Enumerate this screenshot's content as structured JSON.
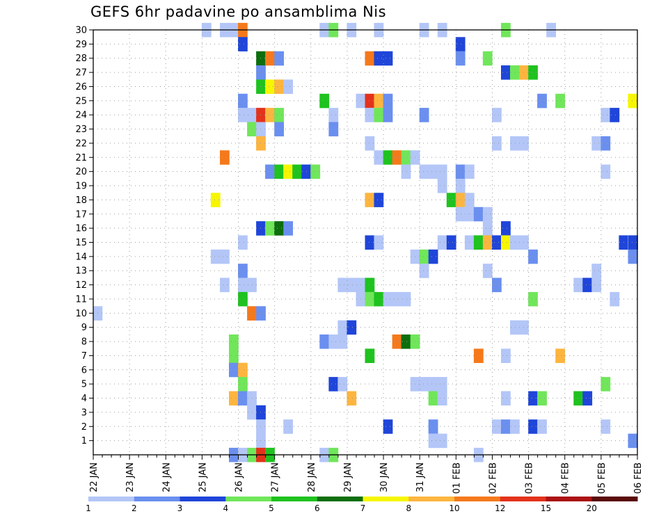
{
  "chart_data": {
    "type": "heatmap",
    "title": "GEFS 6hr padavine po ansamblima Nis",
    "x_label_ticks": [
      "22 JAN",
      "23 JAN",
      "24 JAN",
      "25 JAN",
      "26 JAN",
      "27 JAN",
      "28 JAN",
      "29 JAN",
      "30 JAN",
      "31 JAN",
      "01 FEB",
      "02 FEB",
      "03 FEB",
      "04 FEB",
      "05 FEB",
      "06 FEB"
    ],
    "y_ticks": [
      1,
      2,
      3,
      4,
      5,
      6,
      7,
      8,
      9,
      10,
      11,
      12,
      13,
      14,
      15,
      16,
      17,
      18,
      19,
      20,
      21,
      22,
      23,
      24,
      25,
      26,
      27,
      28,
      29,
      30
    ],
    "xlim": [
      0,
      60
    ],
    "ylim": [
      0,
      30
    ],
    "grid": true,
    "legend_placement": "bottom",
    "legend": {
      "labels": [
        "1",
        "2",
        "3",
        "4",
        "5",
        "6",
        "7",
        "8",
        "10",
        "12",
        "15",
        "20"
      ],
      "colors": [
        "#b3c6f7",
        "#6a8fef",
        "#1f45d9",
        "#70e65a",
        "#1fc21f",
        "#0d6e0d",
        "#f6f600",
        "#fdb53f",
        "#f5791b",
        "#e3321b",
        "#ab1212",
        "#5a0a0a"
      ]
    },
    "cells": [
      [
        12,
        30,
        1
      ],
      [
        14,
        30,
        1
      ],
      [
        15,
        30,
        1
      ],
      [
        16,
        30,
        9
      ],
      [
        25,
        30,
        1
      ],
      [
        26,
        30,
        4
      ],
      [
        28,
        30,
        1
      ],
      [
        31,
        30,
        1
      ],
      [
        36,
        30,
        1
      ],
      [
        38,
        30,
        1
      ],
      [
        45,
        30,
        4
      ],
      [
        50,
        30,
        1
      ],
      [
        16,
        29,
        3
      ],
      [
        40,
        29,
        3
      ],
      [
        18,
        28,
        6
      ],
      [
        19,
        28,
        9
      ],
      [
        20,
        28,
        2
      ],
      [
        30,
        28,
        9
      ],
      [
        31,
        28,
        3
      ],
      [
        32,
        28,
        3
      ],
      [
        40,
        28,
        2
      ],
      [
        43,
        28,
        4
      ],
      [
        18,
        27,
        2
      ],
      [
        45,
        27,
        3
      ],
      [
        46,
        27,
        4
      ],
      [
        47,
        27,
        8
      ],
      [
        48,
        27,
        5
      ],
      [
        18,
        26,
        5
      ],
      [
        19,
        26,
        7
      ],
      [
        20,
        26,
        8
      ],
      [
        21,
        26,
        1
      ],
      [
        16,
        25,
        2
      ],
      [
        25,
        25,
        5
      ],
      [
        29,
        25,
        1
      ],
      [
        30,
        25,
        10
      ],
      [
        31,
        25,
        8
      ],
      [
        32,
        25,
        2
      ],
      [
        49,
        25,
        2
      ],
      [
        51,
        25,
        4
      ],
      [
        59,
        25,
        7
      ],
      [
        16,
        24,
        1
      ],
      [
        17,
        24,
        1
      ],
      [
        18,
        24,
        10
      ],
      [
        19,
        24,
        8
      ],
      [
        20,
        24,
        4
      ],
      [
        26,
        24,
        1
      ],
      [
        30,
        24,
        1
      ],
      [
        31,
        24,
        4
      ],
      [
        32,
        24,
        2
      ],
      [
        36,
        24,
        2
      ],
      [
        44,
        24,
        1
      ],
      [
        56,
        24,
        1
      ],
      [
        57,
        24,
        3
      ],
      [
        17,
        23,
        4
      ],
      [
        18,
        23,
        1
      ],
      [
        20,
        23,
        2
      ],
      [
        26,
        23,
        2
      ],
      [
        18,
        22,
        8
      ],
      [
        30,
        22,
        1
      ],
      [
        44,
        22,
        1
      ],
      [
        46,
        22,
        1
      ],
      [
        47,
        22,
        1
      ],
      [
        55,
        22,
        1
      ],
      [
        56,
        22,
        2
      ],
      [
        14,
        21,
        9
      ],
      [
        31,
        21,
        1
      ],
      [
        32,
        21,
        5
      ],
      [
        33,
        21,
        9
      ],
      [
        34,
        21,
        4
      ],
      [
        35,
        21,
        1
      ],
      [
        19,
        20,
        2
      ],
      [
        20,
        20,
        5
      ],
      [
        21,
        20,
        7
      ],
      [
        22,
        20,
        5
      ],
      [
        23,
        20,
        3
      ],
      [
        24,
        20,
        4
      ],
      [
        34,
        20,
        1
      ],
      [
        36,
        20,
        1
      ],
      [
        37,
        20,
        1
      ],
      [
        38,
        20,
        1
      ],
      [
        40,
        20,
        2
      ],
      [
        41,
        20,
        1
      ],
      [
        56,
        20,
        1
      ],
      [
        38,
        19,
        1
      ],
      [
        40,
        19,
        1
      ],
      [
        13,
        18,
        7
      ],
      [
        30,
        18,
        8
      ],
      [
        31,
        18,
        3
      ],
      [
        39,
        18,
        5
      ],
      [
        40,
        18,
        8
      ],
      [
        41,
        18,
        1
      ],
      [
        40,
        17,
        1
      ],
      [
        41,
        17,
        1
      ],
      [
        42,
        17,
        2
      ],
      [
        43,
        17,
        1
      ],
      [
        18,
        16,
        3
      ],
      [
        19,
        16,
        4
      ],
      [
        20,
        16,
        6
      ],
      [
        21,
        16,
        2
      ],
      [
        43,
        16,
        1
      ],
      [
        45,
        16,
        3
      ],
      [
        16,
        15,
        1
      ],
      [
        30,
        15,
        3
      ],
      [
        31,
        15,
        1
      ],
      [
        38,
        15,
        1
      ],
      [
        39,
        15,
        3
      ],
      [
        41,
        15,
        1
      ],
      [
        42,
        15,
        5
      ],
      [
        43,
        15,
        8
      ],
      [
        44,
        15,
        3
      ],
      [
        45,
        15,
        7
      ],
      [
        46,
        15,
        1
      ],
      [
        47,
        15,
        1
      ],
      [
        58,
        15,
        3
      ],
      [
        59,
        15,
        1
      ],
      [
        60,
        15,
        3
      ],
      [
        13,
        14,
        1
      ],
      [
        14,
        14,
        1
      ],
      [
        35,
        14,
        1
      ],
      [
        36,
        14,
        4
      ],
      [
        37,
        14,
        3
      ],
      [
        48,
        14,
        2
      ],
      [
        59,
        14,
        2
      ],
      [
        16,
        13,
        2
      ],
      [
        36,
        13,
        1
      ],
      [
        43,
        13,
        1
      ],
      [
        55,
        13,
        1
      ],
      [
        14,
        12,
        1
      ],
      [
        16,
        12,
        1
      ],
      [
        17,
        12,
        1
      ],
      [
        27,
        12,
        1
      ],
      [
        28,
        12,
        1
      ],
      [
        29,
        12,
        1
      ],
      [
        30,
        12,
        5
      ],
      [
        53,
        12,
        1
      ],
      [
        54,
        12,
        3
      ],
      [
        55,
        12,
        1
      ],
      [
        44,
        12,
        2
      ],
      [
        16,
        11,
        5
      ],
      [
        29,
        11,
        1
      ],
      [
        30,
        11,
        4
      ],
      [
        31,
        11,
        5
      ],
      [
        32,
        11,
        1
      ],
      [
        33,
        11,
        1
      ],
      [
        34,
        11,
        1
      ],
      [
        48,
        11,
        4
      ],
      [
        57,
        11,
        1
      ],
      [
        0,
        10,
        1
      ],
      [
        17,
        10,
        9
      ],
      [
        18,
        10,
        2
      ],
      [
        27,
        9,
        1
      ],
      [
        28,
        9,
        3
      ],
      [
        46,
        9,
        1
      ],
      [
        47,
        9,
        1
      ],
      [
        15,
        8,
        4
      ],
      [
        25,
        8,
        2
      ],
      [
        26,
        8,
        1
      ],
      [
        27,
        8,
        1
      ],
      [
        33,
        8,
        9
      ],
      [
        34,
        8,
        6
      ],
      [
        35,
        8,
        4
      ],
      [
        15,
        7,
        4
      ],
      [
        30,
        7,
        5
      ],
      [
        42,
        7,
        9
      ],
      [
        45,
        7,
        1
      ],
      [
        51,
        7,
        8
      ],
      [
        15,
        6,
        2
      ],
      [
        16,
        6,
        8
      ],
      [
        16,
        5,
        4
      ],
      [
        26,
        5,
        3
      ],
      [
        27,
        5,
        1
      ],
      [
        35,
        5,
        1
      ],
      [
        36,
        5,
        1
      ],
      [
        37,
        5,
        1
      ],
      [
        38,
        5,
        1
      ],
      [
        56,
        5,
        4
      ],
      [
        15,
        4,
        8
      ],
      [
        16,
        4,
        2
      ],
      [
        17,
        4,
        1
      ],
      [
        28,
        4,
        8
      ],
      [
        37,
        4,
        4
      ],
      [
        38,
        4,
        1
      ],
      [
        45,
        4,
        1
      ],
      [
        48,
        4,
        3
      ],
      [
        49,
        4,
        4
      ],
      [
        53,
        4,
        5
      ],
      [
        54,
        4,
        3
      ],
      [
        17,
        3,
        1
      ],
      [
        18,
        3,
        3
      ],
      [
        18,
        2,
        1
      ],
      [
        21,
        2,
        1
      ],
      [
        32,
        2,
        3
      ],
      [
        37,
        2,
        2
      ],
      [
        44,
        2,
        1
      ],
      [
        45,
        2,
        2
      ],
      [
        46,
        2,
        1
      ],
      [
        48,
        2,
        3
      ],
      [
        49,
        2,
        1
      ],
      [
        56,
        2,
        1
      ],
      [
        18,
        1,
        1
      ],
      [
        37,
        1,
        1
      ],
      [
        38,
        1,
        1
      ],
      [
        59,
        1,
        2
      ],
      [
        15,
        0,
        2
      ],
      [
        16,
        0,
        1
      ],
      [
        17,
        0,
        4
      ],
      [
        18,
        0,
        10
      ],
      [
        19,
        0,
        5
      ],
      [
        25,
        0,
        1
      ],
      [
        26,
        0,
        4
      ],
      [
        42,
        0,
        1
      ]
    ]
  }
}
